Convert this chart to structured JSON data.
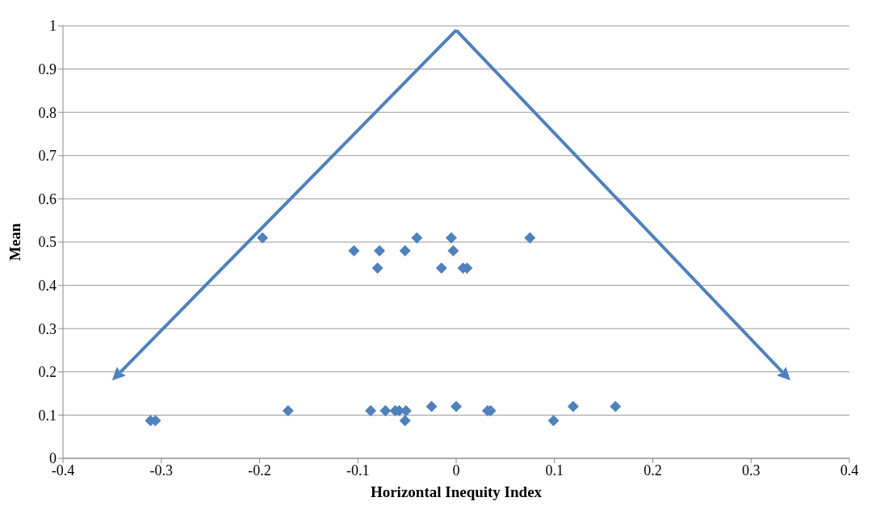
{
  "chart_data": {
    "type": "scatter",
    "xlabel": "Horizontal Inequity Index",
    "ylabel": "Mean",
    "x": [
      -0.197,
      -0.104,
      -0.078,
      -0.08,
      -0.052,
      -0.04,
      -0.005,
      -0.003,
      -0.015,
      0.007,
      0.011,
      0.075,
      -0.311,
      -0.306,
      -0.171,
      -0.087,
      -0.072,
      -0.062,
      -0.058,
      -0.051,
      -0.052,
      -0.025,
      0,
      0.032,
      0.035,
      0.099,
      0.119,
      0.162
    ],
    "values": [
      0.51,
      0.48,
      0.48,
      0.44,
      0.48,
      0.51,
      0.51,
      0.48,
      0.44,
      0.44,
      0.44,
      0.51,
      0.087,
      0.087,
      0.11,
      0.11,
      0.11,
      0.11,
      0.11,
      0.11,
      0.087,
      0.12,
      0.12,
      0.11,
      0.11,
      0.087,
      0.12,
      0.12
    ],
    "color": "#4f81bd",
    "marker": "diamond",
    "grid": "y",
    "xlim": [
      -0.4,
      0.4
    ],
    "xticks": [
      -0.4,
      -0.3,
      -0.2,
      -0.1,
      0,
      0.1,
      0.2,
      0.3,
      0.4
    ],
    "ylim": [
      0,
      1
    ],
    "yticks": [
      0,
      0.1,
      0.2,
      0.3,
      0.4,
      0.5,
      0.6,
      0.7,
      0.8,
      0.9,
      1
    ]
  }
}
